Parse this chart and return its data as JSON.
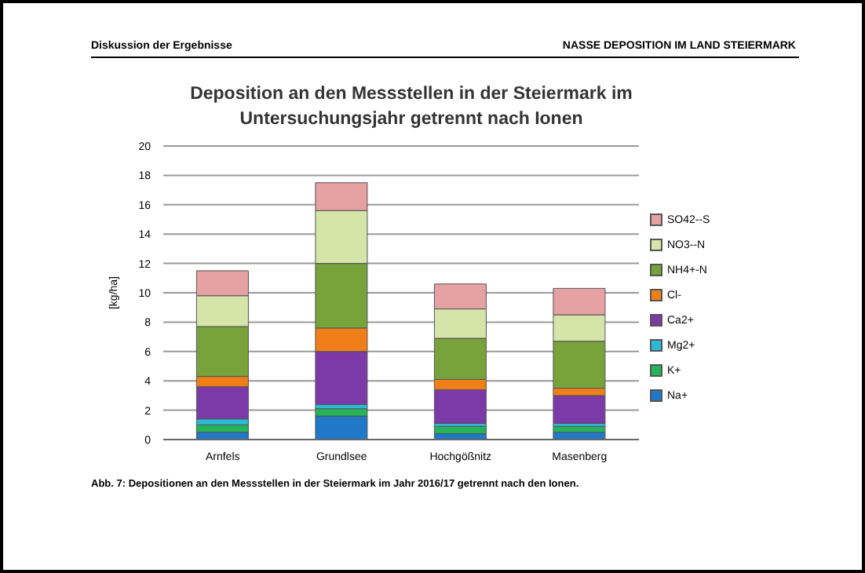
{
  "chart_data": {
    "type": "bar",
    "title": "Deposition an den Messstellen in der Steiermark im Untersuchungsjahr getrennt nach Ionen",
    "ylabel": "[kg/ha]",
    "annotations": [
      "Diskussion der Ergebnisse",
      "NASSE DEPOSITION IM LAND STEIERMARK",
      "Abb. 7: Depositionen an den Messstellen in der Steiermark im Jahr 2016/17 getrennt nach den Ionen."
    ],
    "categories": [
      "Arnfels",
      "Grundlsee",
      "Hochgößnitz",
      "Masenberg"
    ],
    "stacked": true,
    "ylim": [
      0,
      20
    ],
    "yticks": [
      0,
      2,
      4,
      6,
      8,
      10,
      12,
      14,
      16,
      18,
      20
    ],
    "grid": "y",
    "legend": "right",
    "series": [
      {
        "name": "Na+",
        "color": "#1f78c8",
        "values": [
          0.5,
          1.6,
          0.4,
          0.5
        ]
      },
      {
        "name": "K+",
        "color": "#25b45a",
        "values": [
          0.5,
          0.5,
          0.5,
          0.4
        ]
      },
      {
        "name": "Mg2+",
        "color": "#2bbbd8",
        "values": [
          0.4,
          0.3,
          0.2,
          0.2
        ]
      },
      {
        "name": "Ca2+",
        "color": "#7c3aa8",
        "values": [
          2.2,
          3.6,
          2.3,
          1.9
        ]
      },
      {
        "name": "Cl-",
        "color": "#f07f1a",
        "values": [
          0.7,
          1.6,
          0.7,
          0.5
        ]
      },
      {
        "name": "NH4+-N",
        "color": "#77a33a",
        "values": [
          3.4,
          4.4,
          2.8,
          3.2
        ]
      },
      {
        "name": "NO3--N",
        "color": "#d5e4a8",
        "values": [
          2.1,
          3.6,
          2.0,
          1.8
        ]
      },
      {
        "name": "SO42--S",
        "color": "#e6a1a3",
        "values": [
          1.7,
          1.9,
          1.7,
          1.8
        ]
      }
    ]
  }
}
